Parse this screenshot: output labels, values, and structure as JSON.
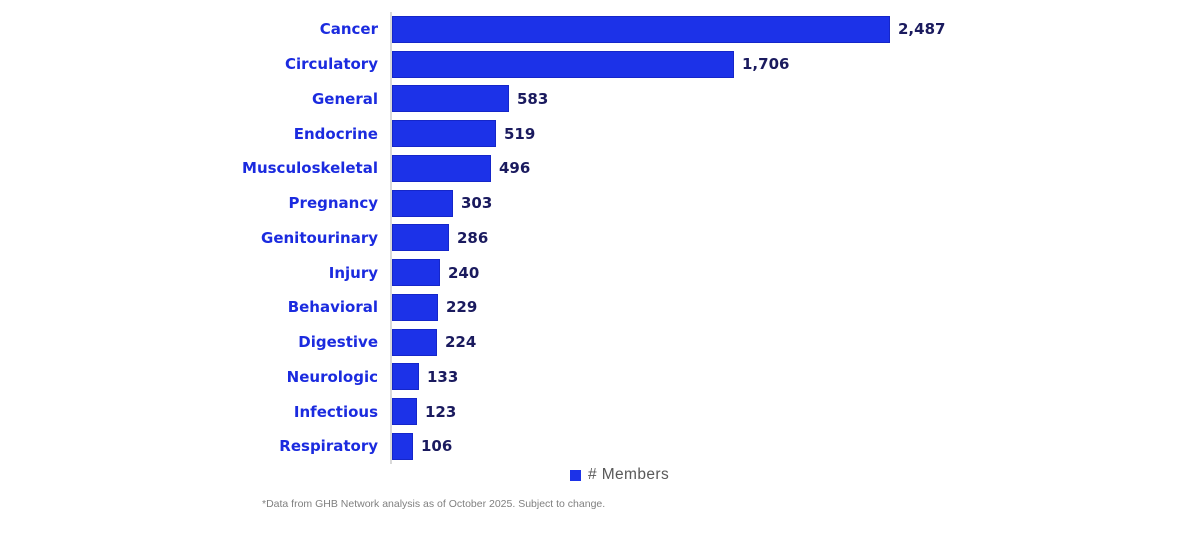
{
  "chart_data": {
    "type": "bar",
    "orientation": "horizontal",
    "title": "",
    "xlabel": "",
    "ylabel": "",
    "grid": false,
    "legend_position": "bottom",
    "legend_label": "# Members",
    "categories": [
      "Cancer",
      "Circulatory",
      "General",
      "Endocrine",
      "Musculoskeletal",
      "Pregnancy",
      "Genitourinary",
      "Injury",
      "Behavioral",
      "Digestive",
      "Neurologic",
      "Infectious",
      "Respiratory"
    ],
    "values": [
      2487,
      1706,
      583,
      519,
      496,
      303,
      286,
      240,
      229,
      224,
      133,
      123,
      106
    ],
    "values_formatted": [
      "2,487",
      "1,706",
      "583",
      "519",
      "496",
      "303",
      "286",
      "240",
      "229",
      "224",
      "133",
      "123",
      "106"
    ],
    "xlim": [
      0,
      2600
    ],
    "colors": {
      "bar_fill": "#1C32E8",
      "bar_border": "#1526C9",
      "category_label": "#1B2BDF",
      "value_label": "#1A1A5E",
      "legend_text": "#595959",
      "footnote_text": "#808080",
      "axis_line": "#D9D9D9"
    }
  },
  "footnote": "*Data from GHB Network analysis as of October 2025. Subject to change."
}
